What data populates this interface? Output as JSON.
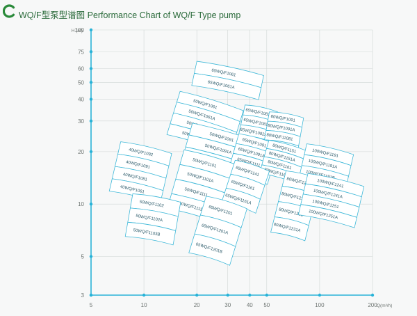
{
  "header": {
    "title": "WQ/F型泵型谱图  Performance Chart of WQ/F Type pump",
    "brand_color": "#2a8a3a",
    "logo_icon": "circular-logo-icon"
  },
  "chart_data": {
    "type": "range-chart",
    "title": "WQ/F型泵型谱图  Performance Chart of WQ/F Type pump",
    "x_scale": "log",
    "y_scale": "log",
    "x_unit": "Q(m³/h)",
    "y_unit": "H (m)",
    "xlim": [
      5,
      200
    ],
    "ylim": [
      3,
      100
    ],
    "x_ticks": [
      5,
      10,
      20,
      30,
      40,
      50,
      100,
      200
    ],
    "x_tick_labels": [
      "5",
      "10",
      "20",
      "30",
      "40",
      "50",
      "100",
      "200"
    ],
    "y_ticks": [
      3,
      5,
      10,
      20,
      30,
      40,
      50,
      60,
      75,
      100
    ],
    "y_tick_labels": [
      "3",
      "5",
      "10",
      "20",
      "30",
      "40",
      "50",
      "60",
      "75",
      "100"
    ],
    "grid": true,
    "axis_color": "#29b3d8",
    "band_color": "#3fb8d8",
    "groups": [
      {
        "q": [
          19.2,
          47
        ],
        "h": [
          61,
          44
        ],
        "rot": 12,
        "rows": [
          "65WQ/F1061",
          "65WQ/F1061A"
        ]
      },
      {
        "q": [
          14.5,
          34.5
        ],
        "h": [
          40,
          22
        ],
        "rot": 17,
        "rows": [
          "50WQ/F1061",
          "50WQ/F1061A",
          "50WQ/F1062",
          "50WQ/F1062A"
        ]
      },
      {
        "q": [
          35.5,
          55
        ],
        "h": [
          36,
          21
        ],
        "rot": 12,
        "rows": [
          "65WQ/F1082",
          "65WQ/F1081",
          "65WQ/F1082A",
          "65WQ/F1081A"
        ]
      },
      {
        "q": [
          49.5,
          78
        ],
        "h": [
          33,
          20
        ],
        "rot": 10,
        "rows": [
          "80WQ/F1091",
          "80WQ/F1091A",
          "80WQ/F11081",
          "80WQ/F1081B"
        ]
      },
      {
        "q": [
          17,
          46
        ],
        "h": [
          26,
          13.5
        ],
        "rot": 16,
        "rows": [
          "50WQ/F1091",
          "50WQ/F1091A",
          "50WQ/F1092",
          "50WQ/F1092A"
        ]
      },
      {
        "q": [
          32,
          55
        ],
        "h": [
          24,
          14
        ],
        "rot": 16,
        "rows": [
          "65WQ/F1091",
          "65WQ/F1091A",
          "65WQ/F1111",
          "65WQ/F1111A"
        ]
      },
      {
        "q": [
          48,
          82
        ],
        "h": [
          22,
          14
        ],
        "rot": 16,
        "rows": [
          "80WQ/F1151",
          "80WQ/F1151A",
          "80WQ/F1161",
          "80WQ/F1161A"
        ]
      },
      {
        "q": [
          80,
          150
        ],
        "h": [
          21,
          13.5
        ],
        "rot": 13,
        "rows": [
          "100WQ/F1191",
          "100WQ/F1191A",
          "100WQ/F1191B"
        ]
      },
      {
        "q": [
          6.8,
          13.5
        ],
        "h": [
          21.5,
          11
        ],
        "rot": 13,
        "rows": [
          "40WQ/F1092",
          "40WQ/F1091",
          "40WQ/F1081",
          "40WQ/F1061"
        ]
      },
      {
        "q": [
          15,
          31
        ],
        "h": [
          19,
          8.5
        ],
        "rot": 16,
        "rows": [
          "50WQ/F1101",
          "50WQ/F1101A",
          "50WQ/F1111",
          "50WQ/F1111A"
        ]
      },
      {
        "q": [
          30,
          48
        ],
        "h": [
          17,
          9.5
        ],
        "rot": 18,
        "rows": [
          "65WQ/F1141",
          "65WQ/F1161",
          "65WQ/F1161A"
        ]
      },
      {
        "q": [
          58,
          92
        ],
        "h": [
          15,
          6.5
        ],
        "rot": 14,
        "rows": [
          "80WQ/F1211",
          "80WQ/F1211A",
          "80WQ/F1231",
          "80WQ/F1231A"
        ]
      },
      {
        "q": [
          80,
          170
        ],
        "h": [
          14,
          8
        ],
        "rot": 13,
        "rows": [
          "100WQ/F1241",
          "100WQ/F1241A",
          "100WQ/F1251",
          "100WQ/F1251A"
        ]
      },
      {
        "q": [
          8.2,
          15.5
        ],
        "h": [
          11,
          6.2
        ],
        "rot": 10,
        "rows": [
          "50WQ/F1102",
          "50WQ/F1102A",
          "50WQ/F1103B"
        ]
      },
      {
        "q": [
          20,
          35
        ],
        "h": [
          10.5,
          4.8
        ],
        "rot": 17,
        "rows": [
          "65WQ/F1201",
          "65WQ/F1201A",
          "65WQ/F1201B"
        ]
      }
    ]
  }
}
